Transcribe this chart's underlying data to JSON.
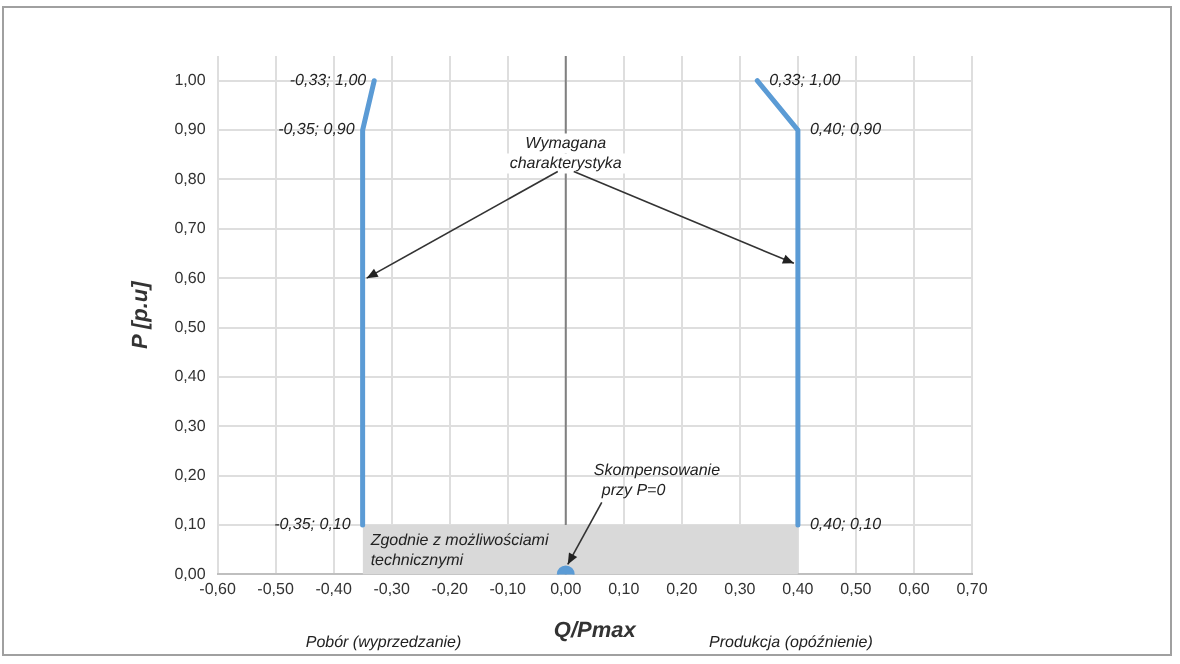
{
  "chart_data": {
    "type": "line",
    "xlabel": "Q/Pmax",
    "ylabel": "P [p.u]",
    "xlim": [
      -0.6,
      0.7
    ],
    "xticks": [
      {
        "value": -0.6,
        "label": "-0,60"
      },
      {
        "value": -0.5,
        "label": "-0,50"
      },
      {
        "value": -0.4,
        "label": "-0,40"
      },
      {
        "value": -0.3,
        "label": "-0,30"
      },
      {
        "value": -0.2,
        "label": "-0,20"
      },
      {
        "value": -0.1,
        "label": "-0,10"
      },
      {
        "value": 0,
        "label": "0,00"
      },
      {
        "value": 0.1,
        "label": "0,10"
      },
      {
        "value": 0.2,
        "label": "0,20"
      },
      {
        "value": 0.3,
        "label": "0,30"
      },
      {
        "value": 0.4,
        "label": "0,40"
      },
      {
        "value": 0.5,
        "label": "0,50"
      },
      {
        "value": 0.6,
        "label": "0,60"
      },
      {
        "value": 0.7,
        "label": "0,70"
      }
    ],
    "ylim": [
      0,
      1.05
    ],
    "yticks": [
      {
        "value": 0,
        "label": "0,00"
      },
      {
        "value": 0.1,
        "label": "0,10"
      },
      {
        "value": 0.2,
        "label": "0,20"
      },
      {
        "value": 0.3,
        "label": "0,30"
      },
      {
        "value": 0.4,
        "label": "0,40"
      },
      {
        "value": 0.5,
        "label": "0,50"
      },
      {
        "value": 0.6,
        "label": "0,60"
      },
      {
        "value": 0.7,
        "label": "0,70"
      },
      {
        "value": 0.8,
        "label": "0,80"
      },
      {
        "value": 0.9,
        "label": "0,90"
      },
      {
        "value": 1.0,
        "label": "1,00"
      }
    ],
    "grid": true,
    "legend": false,
    "ref_lines": [
      {
        "axis": "x",
        "value": 0,
        "color": "#808080"
      }
    ],
    "series": [
      {
        "type": "area",
        "color": "#d9d9d9",
        "x": [
          -0.35,
          0.4
        ],
        "values": [
          0.1,
          0.1
        ]
      },
      {
        "color": "#5b9bd5",
        "x": [
          -0.35,
          -0.35,
          -0.33
        ],
        "values": [
          0.1,
          0.9,
          1.0
        ]
      },
      {
        "color": "#5b9bd5",
        "x": [
          0.4,
          0.4,
          0.33
        ],
        "values": [
          0.1,
          0.9,
          1.0
        ]
      },
      {
        "type": "scatter",
        "color": "#5b9bd5",
        "x": [
          0
        ],
        "values": [
          0
        ]
      }
    ],
    "annotations": [
      {
        "text": "-0,33; 1,00",
        "x": -0.33,
        "y": 1.0
      },
      {
        "text": "-0,35; 0,90",
        "x": -0.35,
        "y": 0.9
      },
      {
        "text": "-0,35; 0,10",
        "x": -0.35,
        "y": 0.1
      },
      {
        "text": "0,33; 1,00",
        "x": 0.33,
        "y": 1.0
      },
      {
        "text": "0,40; 0,90",
        "x": 0.4,
        "y": 0.9
      },
      {
        "text": "0,40; 0,10",
        "x": 0.4,
        "y": 0.1
      },
      {
        "text": "Wymagana charakterystyka",
        "x": 0,
        "y": 0.8
      },
      {
        "text": "Skompensowanie przy P=0",
        "x": 0,
        "y": 0
      },
      {
        "text": "Zgodnie z możliwościami technicznymi",
        "x": -0.35,
        "y": 0.1
      },
      "Pobór (wyprzedzanie)",
      "Produkcja (opóźnienie)"
    ]
  }
}
